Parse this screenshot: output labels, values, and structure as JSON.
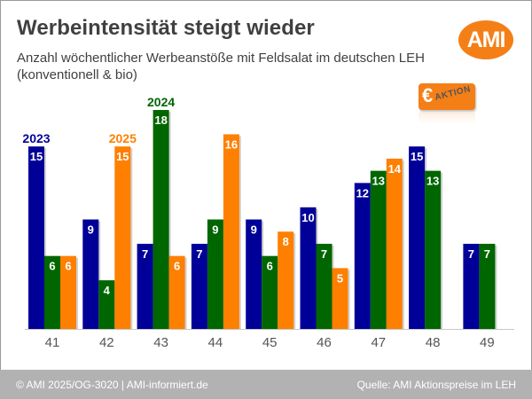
{
  "header": {
    "title": "Werbeintensität steigt wieder",
    "subtitle": "Anzahl wöchentlicher Werbeanstöße mit Feldsalat im deutschen LEH (konventionell & bio)",
    "logo_text": "AMI",
    "badge_symbol": "€",
    "badge_text": "AKTION"
  },
  "footer": {
    "copyright": "© AMI 2025/OG-3020 | AMI-informiert.de",
    "source": "Quelle: AMI Aktionspreise im LEH"
  },
  "colors": {
    "2023": "#000099",
    "2024": "#006600",
    "2025": "#ff7f00",
    "accent": "#f57f17"
  },
  "chart_data": {
    "type": "bar",
    "title": "Werbeintensität steigt wieder",
    "subtitle": "Anzahl wöchentlicher Werbeanstöße mit Feldsalat im deutschen LEH (konventionell & bio)",
    "xlabel": "",
    "ylabel": "",
    "ylim": [
      0,
      18
    ],
    "grid": false,
    "categories": [
      "41",
      "42",
      "43",
      "44",
      "45",
      "46",
      "47",
      "48",
      "49"
    ],
    "series": [
      {
        "name": "2023",
        "color": "#000099",
        "values": [
          15,
          9,
          7,
          7,
          9,
          10,
          12,
          15,
          7
        ]
      },
      {
        "name": "2024",
        "color": "#006600",
        "values": [
          6,
          4,
          18,
          9,
          6,
          7,
          13,
          13,
          7
        ]
      },
      {
        "name": "2025",
        "color": "#ff7f00",
        "values": [
          6,
          15,
          6,
          16,
          8,
          5,
          14,
          null,
          null
        ]
      }
    ],
    "legend": "inline labels above first bars"
  }
}
